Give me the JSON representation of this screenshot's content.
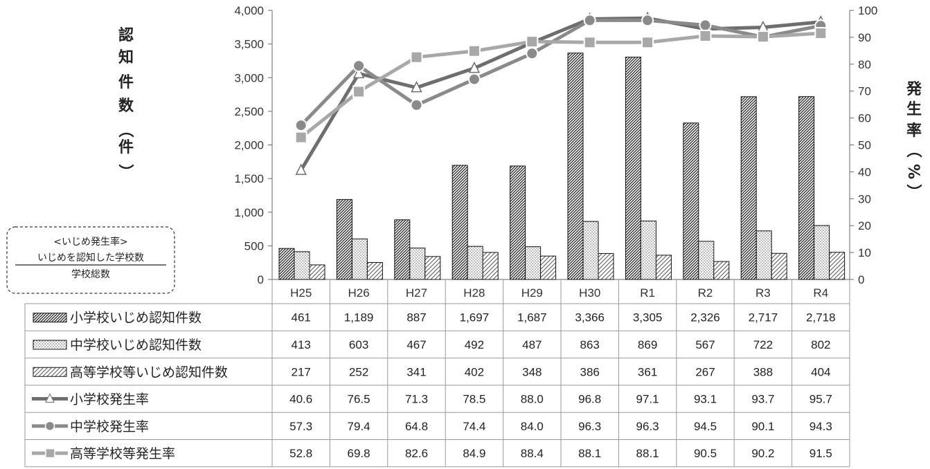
{
  "chart_data": {
    "type": "bar",
    "categories": [
      "H25",
      "H26",
      "H27",
      "H28",
      "H29",
      "H30",
      "R1",
      "R2",
      "R3",
      "R4"
    ],
    "y_left": {
      "label_chars": [
        "認",
        "知",
        "件",
        "数",
        "（",
        "件",
        "）"
      ],
      "lim": [
        0,
        4000
      ],
      "ticks": [
        0,
        500,
        1000,
        1500,
        2000,
        2500,
        3000,
        3500,
        4000
      ]
    },
    "y_right": {
      "label_chars": [
        "発",
        "生",
        "率",
        "（",
        "%",
        "）"
      ],
      "lim": [
        0,
        100
      ],
      "ticks": [
        0,
        10,
        20,
        30,
        40,
        50,
        60,
        70,
        80,
        90,
        100
      ]
    },
    "bar_series": [
      {
        "name": "小学校いじめ認知件数",
        "pattern": "dense",
        "values": [
          461,
          1189,
          887,
          1697,
          1687,
          3366,
          3305,
          2326,
          2717,
          2718
        ]
      },
      {
        "name": "中学校いじめ認知件数",
        "pattern": "dots",
        "values": [
          413,
          603,
          467,
          492,
          487,
          863,
          869,
          567,
          722,
          802
        ]
      },
      {
        "name": "高等学校等いじめ認知件数",
        "pattern": "diag",
        "values": [
          217,
          252,
          341,
          402,
          348,
          386,
          361,
          267,
          388,
          404
        ]
      }
    ],
    "line_series": [
      {
        "name": "小学校発生率",
        "marker": "triangle",
        "color": "#6e6e6e",
        "values": [
          40.6,
          76.5,
          71.3,
          78.5,
          88.0,
          96.8,
          97.1,
          93.1,
          93.7,
          95.7
        ]
      },
      {
        "name": "中学校発生率",
        "marker": "circle",
        "color": "#8a8a8a",
        "values": [
          57.3,
          79.4,
          64.8,
          74.4,
          84.0,
          96.3,
          96.3,
          94.5,
          90.1,
          94.3
        ]
      },
      {
        "name": "高等学校等発生率",
        "marker": "square",
        "color": "#a8a8a8",
        "values": [
          52.8,
          69.8,
          82.6,
          84.9,
          88.4,
          88.1,
          88.1,
          90.5,
          90.2,
          91.5
        ]
      }
    ],
    "data_table": [
      [
        "461",
        "1,189",
        "887",
        "1,697",
        "1,687",
        "3,366",
        "3,305",
        "2,326",
        "2,717",
        "2,718"
      ],
      [
        "413",
        "603",
        "467",
        "492",
        "487",
        "863",
        "869",
        "567",
        "722",
        "802"
      ],
      [
        "217",
        "252",
        "341",
        "402",
        "348",
        "386",
        "361",
        "267",
        "388",
        "404"
      ],
      [
        "40.6",
        "76.5",
        "71.3",
        "78.5",
        "88.0",
        "96.8",
        "97.1",
        "93.1",
        "93.7",
        "95.7"
      ],
      [
        "57.3",
        "79.4",
        "64.8",
        "74.4",
        "84.0",
        "96.3",
        "96.3",
        "94.5",
        "90.1",
        "94.3"
      ],
      [
        "52.8",
        "69.8",
        "82.6",
        "84.9",
        "88.4",
        "88.1",
        "88.1",
        "90.5",
        "90.2",
        "91.5"
      ]
    ],
    "formula": {
      "title": "<いじめ発生率>",
      "numerator": "いじめを認知した学校数",
      "denominator": "学校総数"
    }
  }
}
